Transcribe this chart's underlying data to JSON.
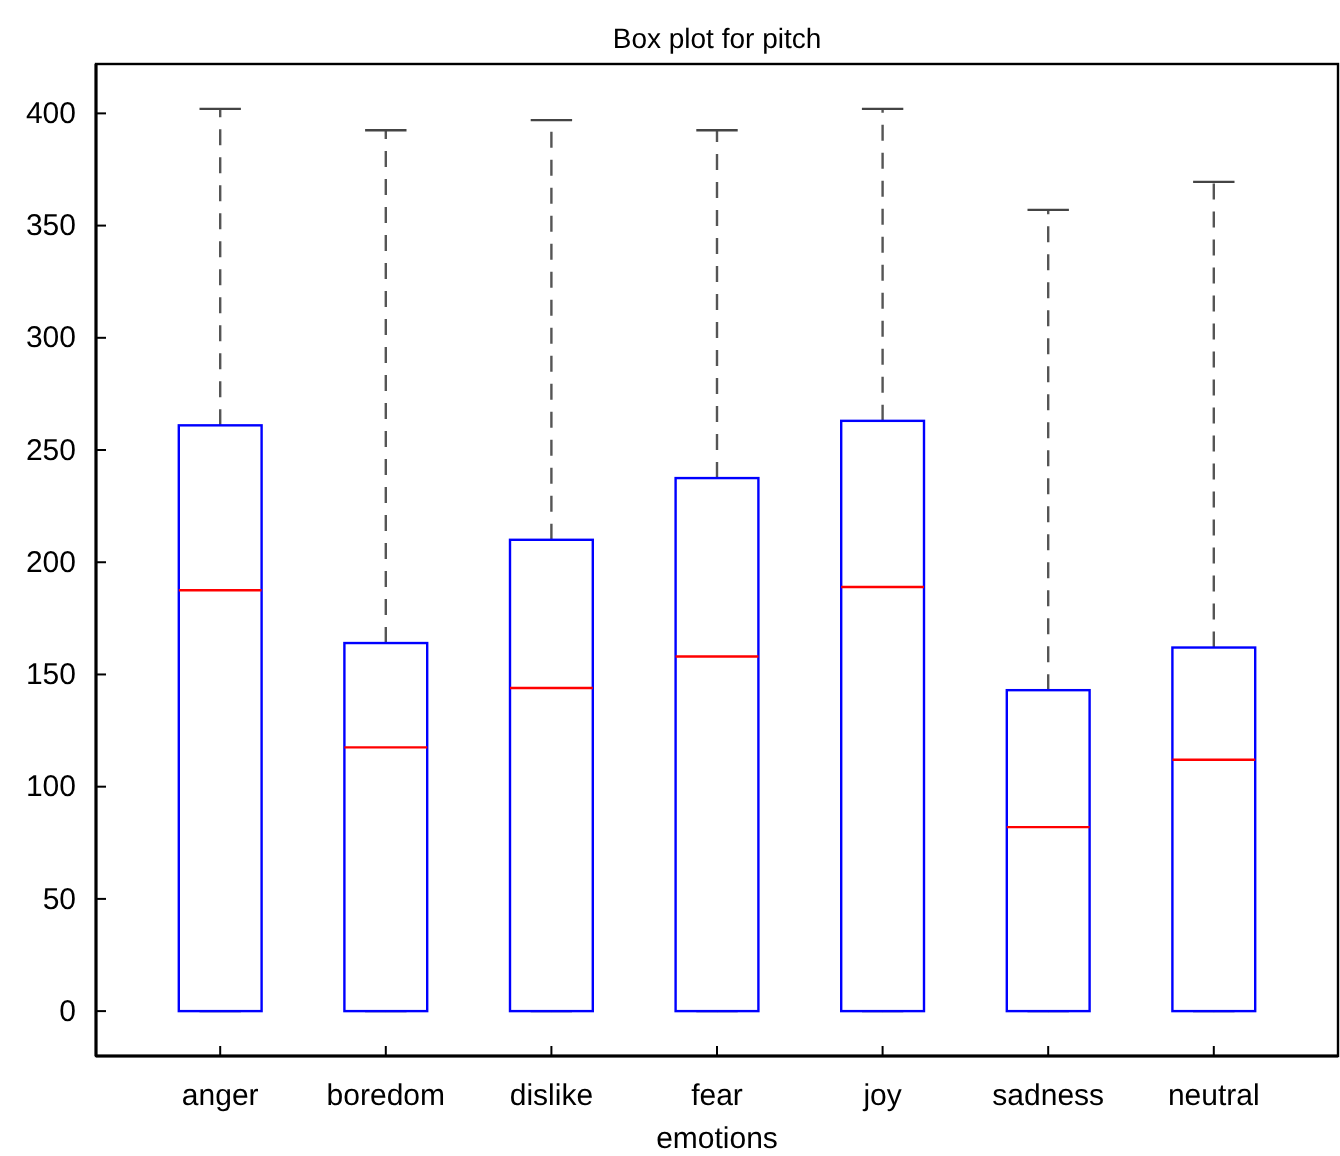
{
  "chart_data": {
    "type": "box",
    "title": "Box plot for pitch",
    "xlabel": "emotions",
    "categories": [
      "anger",
      "boredom",
      "dislike",
      "fear",
      "joy",
      "sadness",
      "neutral"
    ],
    "boxes": [
      {
        "low": 0,
        "q1": 0,
        "median": 187.5,
        "q3": 261,
        "high": 402
      },
      {
        "low": 0,
        "q1": 0,
        "median": 117.5,
        "q3": 164,
        "high": 392.5
      },
      {
        "low": 0,
        "q1": 0,
        "median": 144,
        "q3": 210,
        "high": 397
      },
      {
        "low": 0,
        "q1": 0,
        "median": 158,
        "q3": 237.5,
        "high": 392.5
      },
      {
        "low": 0,
        "q1": 0,
        "median": 189,
        "q3": 263,
        "high": 402
      },
      {
        "low": 0,
        "q1": 0,
        "median": 82,
        "q3": 143,
        "high": 357
      },
      {
        "low": 0,
        "q1": 0,
        "median": 112,
        "q3": 162,
        "high": 369.5
      }
    ],
    "color": "#0000ff",
    "ylim": [
      -20,
      422
    ],
    "yticks": [
      0,
      50,
      100,
      150,
      200,
      250,
      300,
      350,
      400
    ],
    "grid": false
  }
}
